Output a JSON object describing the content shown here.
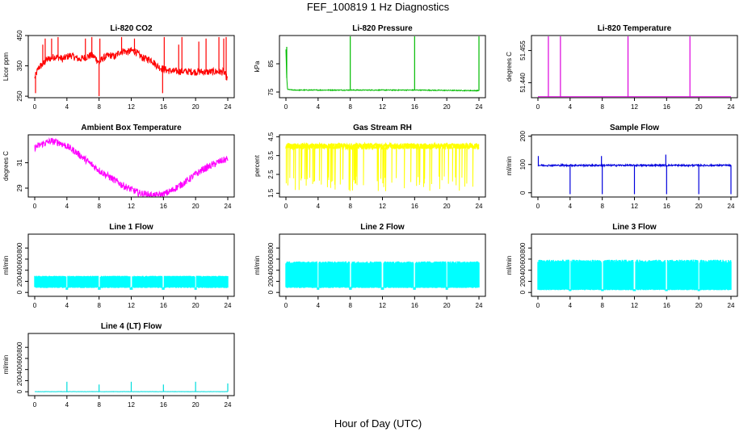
{
  "page": {
    "title": "FEF_100819  1 Hz Diagnostics",
    "xlabel": "Hour of Day (UTC)"
  },
  "chart_data": [
    {
      "type": "line",
      "title": "Li-820 CO2",
      "ylabel": "Licor ppm",
      "color": "#ff0000",
      "xlim": [
        0,
        24
      ],
      "ylim": [
        245,
        450
      ],
      "xticks": [
        0,
        4,
        8,
        12,
        16,
        20,
        24
      ],
      "yticks": [
        250,
        350,
        450
      ],
      "series": [
        {
          "x": [
            0,
            0.5,
            1,
            1.5,
            2,
            2.5,
            3,
            3.5,
            4,
            4.5,
            5,
            5.5,
            6,
            6.5,
            7,
            7.5,
            8,
            8.5,
            9,
            9.5,
            10,
            10.5,
            11,
            11.5,
            12,
            12.5,
            13,
            13.5,
            14,
            14.5,
            15,
            15.5,
            16,
            16.5,
            17,
            17.5,
            18,
            18.5,
            19,
            19.5,
            20,
            20.5,
            21,
            21.5,
            22,
            22.5,
            23,
            23.5,
            24
          ],
          "y": [
            310,
            345,
            355,
            370,
            375,
            380,
            378,
            372,
            380,
            385,
            378,
            372,
            375,
            380,
            385,
            378,
            360,
            375,
            382,
            385,
            380,
            395,
            400,
            395,
            400,
            398,
            385,
            375,
            372,
            370,
            355,
            345,
            340,
            335,
            333,
            332,
            332,
            332,
            331,
            331,
            330,
            331,
            330,
            330,
            330,
            331,
            330,
            330,
            305
          ],
          "noise": 12
        },
        {
          "spikes": [
            [
              0.1,
              260
            ],
            [
              1,
              420
            ],
            [
              1.3,
              440
            ],
            [
              2.1,
              440
            ],
            [
              2.9,
              445
            ],
            [
              6.3,
              440
            ],
            [
              7.1,
              445
            ],
            [
              8.0,
              250
            ],
            [
              8.1,
              440
            ],
            [
              10.8,
              445
            ],
            [
              12.4,
              440
            ],
            [
              15.9,
              260
            ],
            [
              16.1,
              445
            ],
            [
              17.9,
              420
            ],
            [
              18.3,
              445
            ],
            [
              20.4,
              430
            ],
            [
              21.3,
              440
            ],
            [
              22.9,
              445
            ],
            [
              23.5,
              440
            ],
            [
              23.8,
              445
            ]
          ]
        }
      ]
    },
    {
      "type": "line",
      "title": "Li-820 Pressure",
      "ylabel": "kPa",
      "color": "#00bb00",
      "xlim": [
        0,
        24
      ],
      "ylim": [
        73,
        95
      ],
      "xticks": [
        0,
        4,
        8,
        12,
        16,
        20,
        24
      ],
      "yticks": [
        75,
        85
      ],
      "series": [
        {
          "x": [
            0,
            0.1,
            0.2,
            0.5,
            1,
            4,
            8,
            12,
            16,
            20,
            24
          ],
          "y": [
            90,
            80,
            76,
            75.8,
            75.7,
            75.7,
            75.7,
            75.7,
            75.7,
            75.6,
            75.5
          ],
          "noise": 0.15
        },
        {
          "spikes": [
            [
              0.1,
              91
            ],
            [
              8.0,
              95
            ],
            [
              16.0,
              95
            ],
            [
              24.0,
              95
            ]
          ]
        }
      ]
    },
    {
      "type": "line",
      "title": "Li-820 Temperature",
      "ylabel": "degrees C",
      "color": "#dd00dd",
      "xlim": [
        0,
        24
      ],
      "ylim": [
        51.433,
        51.462
      ],
      "xticks": [
        0,
        4,
        8,
        12,
        16,
        20,
        24
      ],
      "yticks": [
        51.44,
        51.455
      ],
      "ytick_labels": [
        "51.440",
        "51.455"
      ],
      "series": [
        {
          "x": [
            0,
            24
          ],
          "y": [
            51.4335,
            51.4335
          ],
          "noise": 0
        },
        {
          "spikes": [
            [
              1.3,
              51.462
            ],
            [
              2.8,
              51.462
            ],
            [
              11.2,
              51.462
            ],
            [
              18.9,
              51.462
            ]
          ]
        }
      ]
    },
    {
      "type": "line",
      "title": "Ambient Box Temperature",
      "ylabel": "degrees C",
      "color": "#ff00ff",
      "xlim": [
        0,
        24
      ],
      "ylim": [
        28.3,
        33.2
      ],
      "xticks": [
        0,
        4,
        8,
        12,
        16,
        20,
        24
      ],
      "yticks": [
        29,
        31
      ],
      "series": [
        {
          "x": [
            0,
            1,
            2,
            3,
            4,
            5,
            6,
            7,
            8,
            9,
            10,
            11,
            12,
            13,
            14,
            15,
            16,
            17,
            18,
            19,
            20,
            21,
            22,
            23,
            24
          ],
          "y": [
            32.2,
            32.5,
            32.7,
            32.6,
            32.3,
            31.9,
            31.4,
            30.9,
            30.4,
            30.0,
            29.6,
            29.2,
            28.9,
            28.6,
            28.5,
            28.4,
            28.5,
            28.8,
            29.2,
            29.6,
            30.1,
            30.5,
            30.8,
            31.1,
            31.3
          ],
          "noise": 0.28
        }
      ]
    },
    {
      "type": "line",
      "title": "Gas Stream RH",
      "ylabel": "percent",
      "color": "#ffff00",
      "xlim": [
        0,
        24
      ],
      "ylim": [
        1.3,
        4.6
      ],
      "xticks": [
        0,
        4,
        8,
        12,
        16,
        20,
        24
      ],
      "yticks": [
        1.5,
        2.5,
        3.5,
        4.5
      ],
      "ytick_labels": [
        "1.5",
        "2.5",
        "3.5",
        "4.5"
      ],
      "series": [
        {
          "x": [
            0,
            24
          ],
          "y": [
            4.0,
            4.0
          ],
          "noise": 0.15,
          "drops": {
            "count": 160,
            "min": 1.6,
            "max": 2.4
          }
        }
      ]
    },
    {
      "type": "line",
      "title": "Sample Flow",
      "ylabel": "ml/min",
      "color": "#0000dd",
      "xlim": [
        0,
        24
      ],
      "ylim": [
        -15,
        205
      ],
      "xticks": [
        0,
        4,
        8,
        12,
        16,
        20,
        24
      ],
      "yticks": [
        0,
        100,
        200
      ],
      "series": [
        {
          "x": [
            0,
            24
          ],
          "y": [
            97,
            97
          ],
          "noise": 3
        },
        {
          "spikes": [
            [
              0.05,
              130
            ],
            [
              4.0,
              -5
            ],
            [
              7.9,
              130
            ],
            [
              8.0,
              -5
            ],
            [
              12.0,
              -5
            ],
            [
              15.9,
              135
            ],
            [
              16.0,
              -5
            ],
            [
              20.0,
              -5
            ],
            [
              24.0,
              -5
            ]
          ]
        }
      ]
    },
    {
      "type": "line",
      "title": "Line 1 Flow",
      "ylabel": "ml/min",
      "color": "#00ffff",
      "xlim": [
        0,
        24
      ],
      "ylim": [
        -70,
        1050
      ],
      "xticks": [
        0,
        4,
        8,
        12,
        16,
        20,
        24
      ],
      "yticks": [
        0,
        200,
        400,
        600,
        800
      ],
      "series": [
        {
          "x": [
            0,
            24
          ],
          "y": [
            290,
            290
          ],
          "noise": 10,
          "band_low": 80,
          "gaps": [
            4,
            8,
            12,
            16,
            20
          ]
        }
      ]
    },
    {
      "type": "line",
      "title": "Line 2 Flow",
      "ylabel": "ml/min",
      "color": "#00ffff",
      "xlim": [
        0,
        24
      ],
      "ylim": [
        -70,
        1050
      ],
      "xticks": [
        0,
        4,
        8,
        12,
        16,
        20,
        24
      ],
      "yticks": [
        0,
        200,
        400,
        600,
        800
      ],
      "series": [
        {
          "x": [
            0,
            24
          ],
          "y": [
            540,
            540
          ],
          "noise": 20,
          "band_low": 80,
          "gaps": [
            4,
            8,
            12,
            16,
            20
          ]
        }
      ]
    },
    {
      "type": "line",
      "title": "Line 3 Flow",
      "ylabel": "ml/min",
      "color": "#00ffff",
      "xlim": [
        0,
        24
      ],
      "ylim": [
        -70,
        1050
      ],
      "xticks": [
        0,
        4,
        8,
        12,
        16,
        20,
        24
      ],
      "yticks": [
        0,
        200,
        400,
        600,
        800
      ],
      "series": [
        {
          "x": [
            0,
            24
          ],
          "y": [
            560,
            560
          ],
          "noise": 30,
          "band_low": 40,
          "gaps": [
            4,
            8,
            12,
            16,
            20
          ]
        }
      ]
    },
    {
      "type": "line",
      "title": "Line 4 (LT) Flow",
      "ylabel": "ml/min",
      "color": "#00dddd",
      "xlim": [
        0,
        24
      ],
      "ylim": [
        -70,
        1050
      ],
      "xticks": [
        0,
        4,
        8,
        12,
        16,
        20,
        24
      ],
      "yticks": [
        0,
        200,
        400,
        600,
        800
      ],
      "series": [
        {
          "x": [
            0,
            24
          ],
          "y": [
            2,
            2
          ],
          "noise": 2
        },
        {
          "spikes": [
            [
              4.0,
              180
            ],
            [
              8.0,
              130
            ],
            [
              12.0,
              180
            ],
            [
              16.0,
              130
            ],
            [
              20.0,
              180
            ],
            [
              24.0,
              150
            ]
          ]
        }
      ]
    }
  ]
}
